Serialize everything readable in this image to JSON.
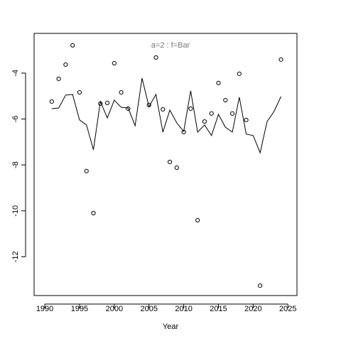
{
  "chart_data": {
    "type": "line",
    "title": "a=2  :  f=Bar",
    "x_label": "Year",
    "x": [
      1991,
      1992,
      1993,
      1994,
      1995,
      1996,
      1997,
      1998,
      1999,
      2000,
      2001,
      2002,
      2003,
      2004,
      2005,
      2006,
      2007,
      2008,
      2009,
      2010,
      2011,
      2012,
      2013,
      2014,
      2015,
      2016,
      2017,
      2018,
      2019,
      2020,
      2021,
      2022,
      2023,
      2024
    ],
    "series": [
      {
        "style": "line",
        "color": "#000000",
        "values": [
          -5.55,
          -5.52,
          -4.96,
          -4.93,
          -6.04,
          -6.26,
          -7.34,
          -5.24,
          -5.95,
          -5.18,
          -5.49,
          -5.52,
          -6.29,
          -4.22,
          -5.46,
          -4.93,
          -6.57,
          -5.61,
          -6.17,
          -6.54,
          -4.77,
          -6.57,
          -6.26,
          -6.72,
          -5.8,
          -6.36,
          -6.57,
          -5.05,
          -6.66,
          -6.72,
          -7.47,
          -6.11,
          -5.67,
          -5.02
        ]
      },
      {
        "style": "points",
        "color": "#000000",
        "values": [
          -5.24,
          -4.25,
          -3.63,
          -2.79,
          -4.84,
          -8.27,
          -10.1,
          -5.33,
          -5.3,
          -3.57,
          -4.84,
          -5.55,
          null,
          null,
          -5.39,
          -3.32,
          -5.58,
          -7.87,
          -8.12,
          -6.57,
          -5.55,
          -10.41,
          -6.11,
          -5.76,
          -4.43,
          -5.18,
          -5.76,
          -4.03,
          -6.04,
          null,
          -13.26,
          null,
          null,
          -3.41
        ]
      }
    ],
    "xlim": [
      1988.46,
      2026.3
    ],
    "ylim": [
      -13.69,
      -2.27
    ],
    "xticks": [
      1990,
      1995,
      2000,
      2005,
      2010,
      2015,
      2020,
      2025
    ],
    "yticks": [
      -12,
      -10,
      -8,
      -6,
      -4
    ]
  }
}
